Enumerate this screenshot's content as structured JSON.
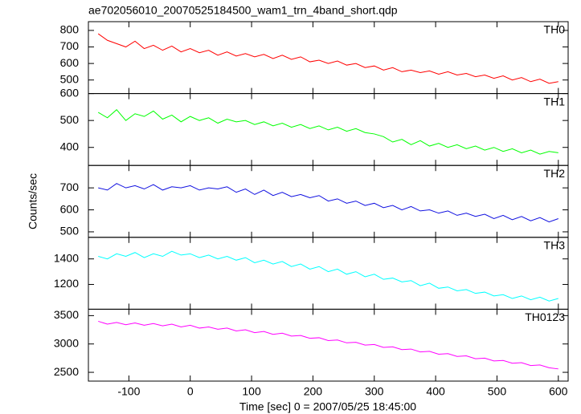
{
  "title": "ae702056010_20070525184500_wam1_trn_4band_short.qdp",
  "xlabel": "Time [sec] 0 = 2007/05/25 18:45:00",
  "ylabel": "Counts/sec",
  "chart_data": [
    {
      "type": "line",
      "xlim": [
        -166,
        616
      ],
      "xticks": [
        -100,
        0,
        100,
        200,
        300,
        400,
        500,
        600
      ],
      "ylim": [
        418,
        853
      ],
      "yticks": [
        500,
        600,
        700,
        800
      ],
      "x": [
        -150,
        -135,
        -120,
        -105,
        -90,
        -75,
        -60,
        -45,
        -30,
        -15,
        0,
        15,
        30,
        45,
        60,
        75,
        90,
        105,
        120,
        135,
        150,
        165,
        180,
        195,
        210,
        225,
        240,
        255,
        270,
        285,
        300,
        315,
        330,
        345,
        360,
        375,
        390,
        405,
        420,
        435,
        450,
        465,
        480,
        495,
        510,
        525,
        540,
        555,
        570,
        585,
        600
      ],
      "series": [
        {
          "name": "TH0",
          "color": "#ff0000",
          "values": [
            780,
            740,
            720,
            700,
            735,
            690,
            710,
            680,
            705,
            670,
            690,
            665,
            680,
            650,
            670,
            645,
            660,
            640,
            655,
            630,
            650,
            625,
            640,
            610,
            620,
            600,
            615,
            590,
            600,
            575,
            585,
            560,
            575,
            550,
            560,
            545,
            555,
            535,
            550,
            530,
            540,
            520,
            530,
            510,
            525,
            500,
            515,
            490,
            505,
            480,
            490
          ]
        }
      ]
    },
    {
      "type": "line",
      "xlim": [
        -166,
        616
      ],
      "xticks": [
        -100,
        0,
        100,
        200,
        300,
        400,
        500,
        600
      ],
      "ylim": [
        333,
        600
      ],
      "yticks": [
        400,
        500,
        600
      ],
      "x": [
        -150,
        -135,
        -120,
        -105,
        -90,
        -75,
        -60,
        -45,
        -30,
        -15,
        0,
        15,
        30,
        45,
        60,
        75,
        90,
        105,
        120,
        135,
        150,
        165,
        180,
        195,
        210,
        225,
        240,
        255,
        270,
        285,
        300,
        315,
        330,
        345,
        360,
        375,
        390,
        405,
        420,
        435,
        450,
        465,
        480,
        495,
        510,
        525,
        540,
        555,
        570,
        585,
        600
      ],
      "series": [
        {
          "name": "TH1",
          "color": "#00ff00",
          "values": [
            530,
            510,
            540,
            500,
            525,
            515,
            535,
            505,
            520,
            495,
            515,
            500,
            510,
            490,
            505,
            495,
            500,
            485,
            495,
            480,
            490,
            475,
            485,
            470,
            480,
            465,
            475,
            460,
            470,
            455,
            450,
            440,
            420,
            430,
            410,
            425,
            405,
            415,
            400,
            410,
            395,
            405,
            390,
            400,
            385,
            395,
            380,
            390,
            375,
            385,
            380
          ]
        }
      ]
    },
    {
      "type": "line",
      "xlim": [
        -166,
        616
      ],
      "xticks": [
        -100,
        0,
        100,
        200,
        300,
        400,
        500,
        600
      ],
      "ylim": [
        475,
        802
      ],
      "yticks": [
        500,
        600,
        700
      ],
      "x": [
        -150,
        -135,
        -120,
        -105,
        -90,
        -75,
        -60,
        -45,
        -30,
        -15,
        0,
        15,
        30,
        45,
        60,
        75,
        90,
        105,
        120,
        135,
        150,
        165,
        180,
        195,
        210,
        225,
        240,
        255,
        270,
        285,
        300,
        315,
        330,
        345,
        360,
        375,
        390,
        405,
        420,
        435,
        450,
        465,
        480,
        495,
        510,
        525,
        540,
        555,
        570,
        585,
        600
      ],
      "series": [
        {
          "name": "TH2",
          "color": "#1010e0",
          "values": [
            700,
            690,
            720,
            700,
            710,
            695,
            715,
            690,
            705,
            700,
            710,
            690,
            700,
            695,
            705,
            680,
            695,
            670,
            690,
            665,
            680,
            660,
            670,
            655,
            665,
            640,
            650,
            630,
            640,
            620,
            630,
            610,
            620,
            600,
            615,
            595,
            600,
            585,
            595,
            575,
            585,
            570,
            580,
            560,
            575,
            555,
            570,
            550,
            565,
            545,
            560
          ]
        }
      ]
    },
    {
      "type": "line",
      "xlim": [
        -166,
        616
      ],
      "xticks": [
        -100,
        0,
        100,
        200,
        300,
        400,
        500,
        600
      ],
      "ylim": [
        1006,
        1569
      ],
      "yticks": [
        1200,
        1400
      ],
      "x": [
        -150,
        -135,
        -120,
        -105,
        -90,
        -75,
        -60,
        -45,
        -30,
        -15,
        0,
        15,
        30,
        45,
        60,
        75,
        90,
        105,
        120,
        135,
        150,
        165,
        180,
        195,
        210,
        225,
        240,
        255,
        270,
        285,
        300,
        315,
        330,
        345,
        360,
        375,
        390,
        405,
        420,
        435,
        450,
        465,
        480,
        495,
        510,
        525,
        540,
        555,
        570,
        585,
        600
      ],
      "series": [
        {
          "name": "TH3",
          "color": "#00ffff",
          "values": [
            1420,
            1400,
            1440,
            1420,
            1450,
            1410,
            1440,
            1420,
            1460,
            1430,
            1440,
            1410,
            1430,
            1400,
            1420,
            1390,
            1410,
            1370,
            1390,
            1360,
            1380,
            1340,
            1360,
            1320,
            1340,
            1300,
            1320,
            1280,
            1300,
            1260,
            1280,
            1240,
            1250,
            1220,
            1230,
            1190,
            1210,
            1170,
            1180,
            1150,
            1160,
            1130,
            1140,
            1110,
            1120,
            1090,
            1110,
            1080,
            1100,
            1070,
            1090
          ]
        }
      ]
    },
    {
      "type": "line",
      "xlim": [
        -166,
        616
      ],
      "xticks": [
        -100,
        0,
        100,
        200,
        300,
        400,
        500,
        600
      ],
      "ylim": [
        2345,
        3613
      ],
      "yticks": [
        2500,
        3000,
        3500
      ],
      "x": [
        -150,
        -135,
        -120,
        -105,
        -90,
        -75,
        -60,
        -45,
        -30,
        -15,
        0,
        15,
        30,
        45,
        60,
        75,
        90,
        105,
        120,
        135,
        150,
        165,
        180,
        195,
        210,
        225,
        240,
        255,
        270,
        285,
        300,
        315,
        330,
        345,
        360,
        375,
        390,
        405,
        420,
        435,
        450,
        465,
        480,
        495,
        510,
        525,
        540,
        555,
        570,
        585,
        600
      ],
      "series": [
        {
          "name": "TH0123",
          "color": "#ff00ff",
          "values": [
            3400,
            3350,
            3380,
            3340,
            3370,
            3330,
            3360,
            3320,
            3350,
            3300,
            3330,
            3280,
            3300,
            3260,
            3280,
            3230,
            3250,
            3200,
            3220,
            3170,
            3190,
            3140,
            3150,
            3100,
            3110,
            3060,
            3070,
            3020,
            3030,
            2980,
            2990,
            2940,
            2950,
            2900,
            2910,
            2860,
            2870,
            2820,
            2830,
            2780,
            2790,
            2740,
            2750,
            2700,
            2710,
            2660,
            2670,
            2620,
            2630,
            2580,
            2560
          ]
        }
      ]
    }
  ]
}
